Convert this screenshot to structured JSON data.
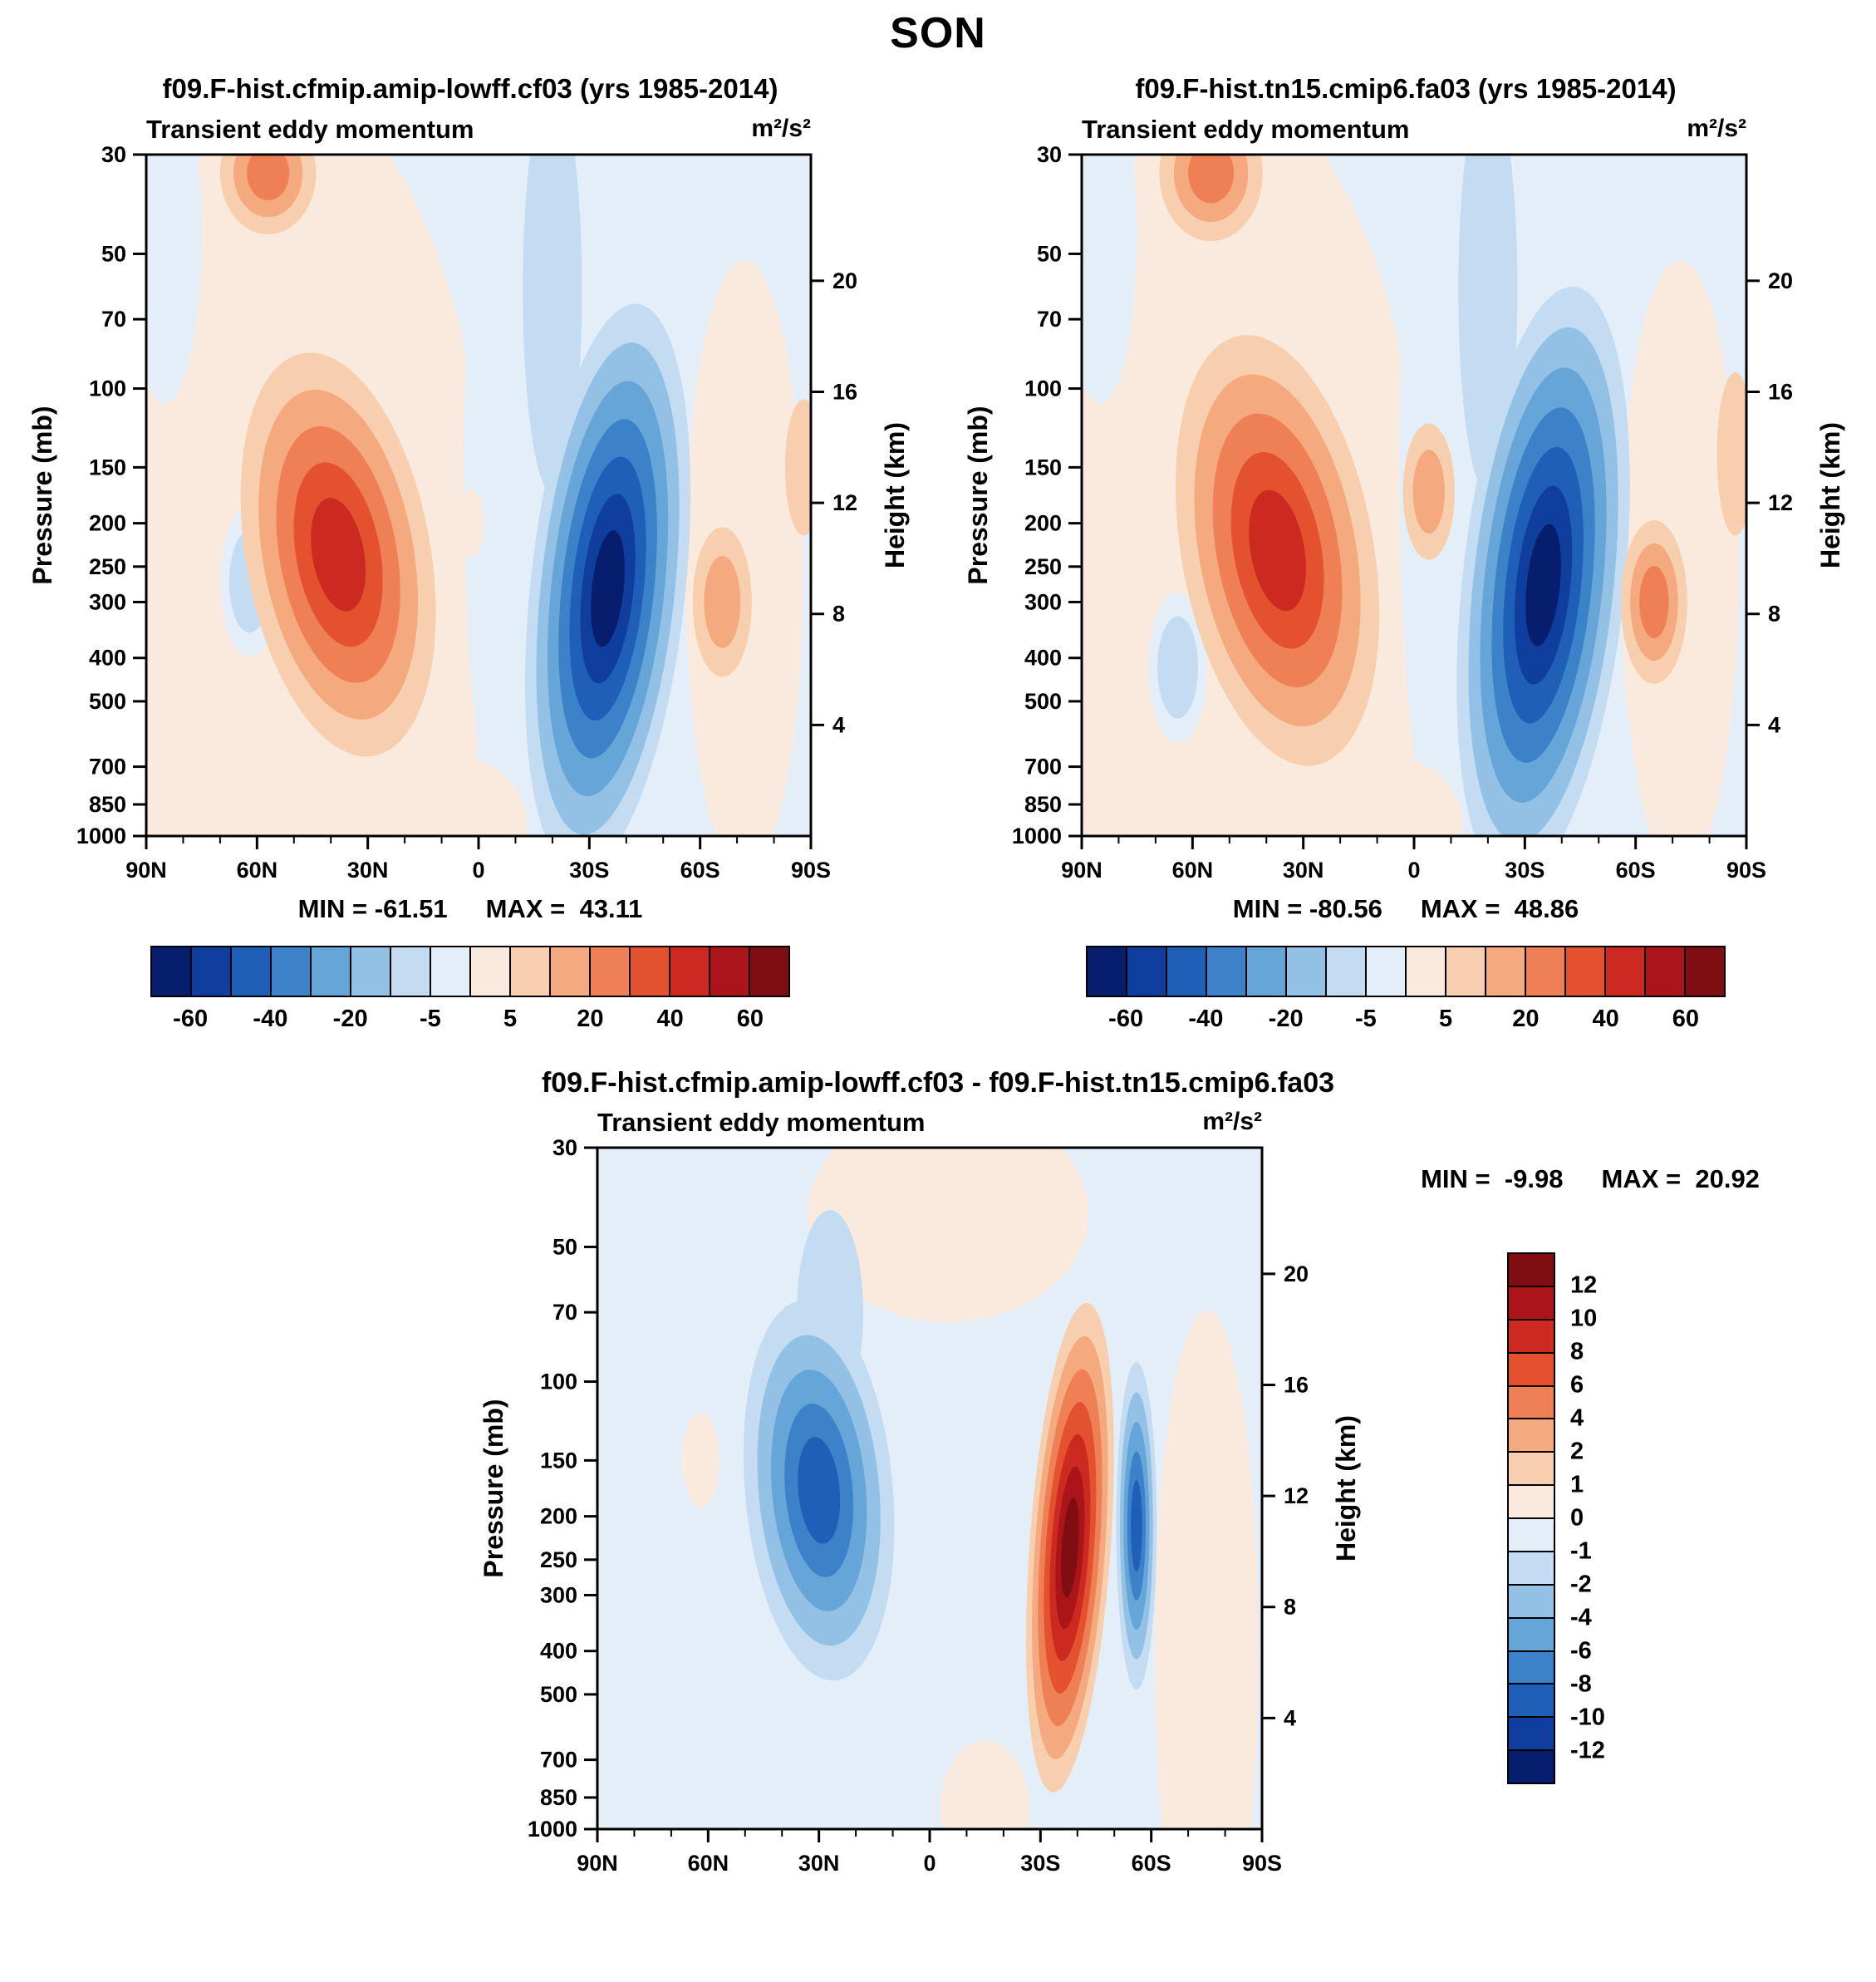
{
  "figure": {
    "title": "SON"
  },
  "chart_data": {
    "type": "contour",
    "description": "Latitude-pressure cross sections of transient eddy momentum for two model runs and their difference, season SON",
    "level_colors_main": {
      "5": "#f8cfae",
      "10": "#f5a97e",
      "20": "#ef7f55",
      "30": "#e4512f",
      "40": "#cc2a20",
      "50": "#ab151a",
      "60": "#7f0d12",
      "-5": "#c3dcf1",
      "-10": "#93c1e5",
      "-20": "#66a5d8",
      "-30": "#3b82c9",
      "-40": "#1f5fb8",
      "-50": "#0f3e9e",
      "-60": "#071e6e"
    },
    "level_colors_diff": {
      "1": "#f8cfae",
      "2": "#f5a97e",
      "4": "#ef7f55",
      "6": "#e4512f",
      "8": "#cc2a20",
      "10": "#ab151a",
      "12": "#7f0d12",
      "-1": "#c3dcf1",
      "-2": "#93c1e5",
      "-4": "#66a5d8",
      "-6": "#3b82c9",
      "-8": "#1f5fb8",
      "-10": "#0f3e9e",
      "-12": "#071e6e"
    },
    "colorbar_main": {
      "colors": [
        "#071e6e",
        "#0f3e9e",
        "#1f5fb8",
        "#3b82c9",
        "#66a5d8",
        "#93c1e5",
        "#c3dcf1",
        "#e3eef8",
        "#faeade",
        "#f8cfae",
        "#f5a97e",
        "#ef7f55",
        "#e4512f",
        "#cc2a20",
        "#ab151a",
        "#7f0d12"
      ],
      "labels": [
        "-60",
        "-40",
        "-20",
        "-5",
        "5",
        "20",
        "40",
        "60"
      ],
      "label_boundaries": [
        1,
        3,
        5,
        7,
        9,
        11,
        13,
        15
      ],
      "n_boxes": 16
    },
    "colorbar_diff": {
      "colors": [
        "#7f0d12",
        "#ab151a",
        "#cc2a20",
        "#e4512f",
        "#ef7f55",
        "#f5a97e",
        "#f8cfae",
        "#faeade",
        "#e3eef8",
        "#c3dcf1",
        "#93c1e5",
        "#66a5d8",
        "#3b82c9",
        "#1f5fb8",
        "#0f3e9e",
        "#071e6e"
      ],
      "labels": [
        "12",
        "10",
        "8",
        "6",
        "4",
        "2",
        "1",
        "0",
        "-1",
        "-2",
        "-4",
        "-6",
        "-8",
        "-10",
        "-12"
      ],
      "n_boxes": 16
    },
    "panels": [
      {
        "id": "cf03",
        "title": "f09.F-hist.cfmip.amip-lowff.cf03 (yrs 1985-2014)",
        "subtitle": "Transient eddy momentum",
        "units": "m²/s²",
        "min": -61.51,
        "max": 43.11,
        "min_label": "MIN = -61.51",
        "max_label": "MAX =  43.11",
        "ylabel_left": "Pressure (mb)",
        "ylabel_right": "Height (km)",
        "pressure_ticks": [
          30,
          50,
          70,
          100,
          150,
          200,
          250,
          300,
          400,
          500,
          700,
          850,
          1000
        ],
        "height_ticks": [
          20,
          16,
          12,
          8,
          4
        ],
        "xlabel_ticks": [
          "90N",
          "60N",
          "30N",
          "0",
          "30S",
          "60S",
          "90S"
        ],
        "bg": "#e3eef8",
        "bg_blobs": [
          {
            "lat": 55,
            "p": 280,
            "rx": 58,
            "ry": 0.75,
            "color": "#faeade"
          },
          {
            "lat": 85,
            "p": 45,
            "rx": 10,
            "ry": 0.25,
            "color": "#e3eef8"
          },
          {
            "lat": -5,
            "p": 150,
            "rx": 9,
            "ry": 0.5,
            "color": "#e3eef8"
          },
          {
            "lat": 2,
            "p": 200,
            "rx": 3.5,
            "ry": 0.05,
            "color": "#faeade"
          },
          {
            "lat": 5,
            "p": 950,
            "rx": 18,
            "ry": 0.1,
            "color": "#faeade"
          },
          {
            "lat": -72,
            "p": 250,
            "rx": 16,
            "ry": 0.45,
            "color": "#faeade"
          },
          {
            "lat": 62,
            "p": 270,
            "rx": 8,
            "ry": 0.11,
            "color": "#e3eef8"
          },
          {
            "lat": 62,
            "p": 270,
            "rx": 5.5,
            "ry": 0.075,
            "color": "#c3dcf1"
          }
        ],
        "features": [
          {
            "lat": 57,
            "p": 33,
            "rx": 13,
            "ry": 0.09,
            "levels": [
              5,
              10,
              20
            ]
          },
          {
            "lat": 38,
            "p": 235,
            "rx": 25,
            "ry": 0.3,
            "rot": -10,
            "levels": [
              5,
              10,
              20,
              30,
              40
            ]
          },
          {
            "lat": -20,
            "p": 60,
            "rx": 8,
            "ry": 0.3,
            "levels": [
              -5
            ]
          },
          {
            "lat": -35,
            "p": 280,
            "rx": 21,
            "ry": 0.42,
            "rot": 6,
            "levels": [
              -5,
              -10,
              -20,
              -30,
              -40,
              -50,
              -60
            ]
          },
          {
            "lat": -66,
            "p": 300,
            "rx": 8,
            "ry": 0.11,
            "levels": [
              5,
              10
            ]
          },
          {
            "lat": -88,
            "p": 150,
            "rx": 5,
            "ry": 0.1,
            "levels": [
              5
            ]
          }
        ]
      },
      {
        "id": "fa03",
        "title": "f09.F-hist.tn15.cmip6.fa03 (yrs 1985-2014)",
        "subtitle": "Transient eddy momentum",
        "units": "m²/s²",
        "min": -80.56,
        "max": 48.86,
        "min_label": "MIN = -80.56",
        "max_label": "MAX =  48.86",
        "ylabel_left": "Pressure (mb)",
        "ylabel_right": "Height (km)",
        "pressure_ticks": [
          30,
          50,
          70,
          100,
          150,
          200,
          250,
          300,
          400,
          500,
          700,
          850,
          1000
        ],
        "height_ticks": [
          20,
          16,
          12,
          8,
          4
        ],
        "xlabel_ticks": [
          "90N",
          "60N",
          "30N",
          "0",
          "30S",
          "60S",
          "90S"
        ],
        "bg": "#e3eef8",
        "bg_blobs": [
          {
            "lat": 55,
            "p": 280,
            "rx": 58,
            "ry": 0.75,
            "color": "#faeade"
          },
          {
            "lat": 85,
            "p": 45,
            "rx": 10,
            "ry": 0.25,
            "color": "#e3eef8"
          },
          {
            "lat": -5,
            "p": 150,
            "rx": 9,
            "ry": 0.5,
            "color": "#e3eef8"
          },
          {
            "lat": 5,
            "p": 950,
            "rx": 18,
            "ry": 0.1,
            "color": "#faeade"
          },
          {
            "lat": -72,
            "p": 250,
            "rx": 16,
            "ry": 0.45,
            "color": "#faeade"
          },
          {
            "lat": 64,
            "p": 420,
            "rx": 8,
            "ry": 0.11,
            "color": "#e3eef8"
          },
          {
            "lat": 64,
            "p": 420,
            "rx": 5.5,
            "ry": 0.075,
            "color": "#c3dcf1"
          }
        ],
        "features": [
          {
            "lat": 55,
            "p": 33,
            "rx": 14,
            "ry": 0.1,
            "levels": [
              5,
              10,
              20
            ]
          },
          {
            "lat": 37,
            "p": 230,
            "rx": 26,
            "ry": 0.32,
            "rot": -10,
            "levels": [
              5,
              10,
              20,
              30,
              40
            ]
          },
          {
            "lat": -4,
            "p": 170,
            "rx": 7,
            "ry": 0.1,
            "levels": [
              5,
              10
            ]
          },
          {
            "lat": -20,
            "p": 60,
            "rx": 8,
            "ry": 0.3,
            "levels": [
              -5
            ]
          },
          {
            "lat": -35,
            "p": 275,
            "rx": 22,
            "ry": 0.44,
            "rot": 6,
            "levels": [
              -5,
              -10,
              -20,
              -30,
              -40,
              -50,
              -60
            ]
          },
          {
            "lat": -65,
            "p": 300,
            "rx": 9,
            "ry": 0.12,
            "levels": [
              5,
              10,
              20
            ]
          },
          {
            "lat": -87,
            "p": 140,
            "rx": 5,
            "ry": 0.12,
            "levels": [
              5
            ]
          }
        ]
      },
      {
        "id": "diff",
        "diff": true,
        "title": "f09.F-hist.cfmip.amip-lowff.cf03 - f09.F-hist.tn15.cmip6.fa03",
        "subtitle": "Transient eddy momentum",
        "units": "m²/s²",
        "min": -9.98,
        "max": 20.92,
        "min_label": "MIN =  -9.98",
        "max_label": "MAX =  20.92",
        "ylabel_left": "Pressure (mb)",
        "ylabel_right": "Height (km)",
        "pressure_ticks": [
          30,
          50,
          70,
          100,
          150,
          200,
          250,
          300,
          400,
          500,
          700,
          850,
          1000
        ],
        "height_ticks": [
          20,
          16,
          12,
          8,
          4
        ],
        "xlabel_ticks": [
          "90N",
          "60N",
          "30N",
          "0",
          "30S",
          "60S",
          "90S"
        ],
        "bg": "#e3eef8",
        "bg_blobs": [
          {
            "lat": -5,
            "p": 42,
            "rx": 38,
            "ry": 0.16,
            "color": "#faeade"
          },
          {
            "lat": -75,
            "p": 400,
            "rx": 14,
            "ry": 0.5,
            "color": "#faeade"
          },
          {
            "lat": 62,
            "p": 150,
            "rx": 5,
            "ry": 0.07,
            "color": "#faeade"
          },
          {
            "lat": -15,
            "p": 900,
            "rx": 12,
            "ry": 0.1,
            "color": "#faeade"
          }
        ],
        "features": [
          {
            "lat": 27,
            "p": 70,
            "rx": 9,
            "ry": 0.15,
            "levels": [
              -1
            ]
          },
          {
            "lat": 30,
            "p": 175,
            "rx": 20,
            "ry": 0.28,
            "rot": -5,
            "levels": [
              -1,
              -2,
              -4,
              -6,
              -8
            ]
          },
          {
            "lat": -38,
            "p": 235,
            "rx": 11,
            "ry": 0.36,
            "rot": 4,
            "levels": [
              1,
              2,
              4,
              6,
              8,
              10,
              12
            ]
          },
          {
            "lat": -56,
            "p": 210,
            "rx": 5.5,
            "ry": 0.24,
            "levels": [
              -1,
              -2,
              -4,
              -6,
              -8
            ]
          }
        ]
      }
    ]
  }
}
